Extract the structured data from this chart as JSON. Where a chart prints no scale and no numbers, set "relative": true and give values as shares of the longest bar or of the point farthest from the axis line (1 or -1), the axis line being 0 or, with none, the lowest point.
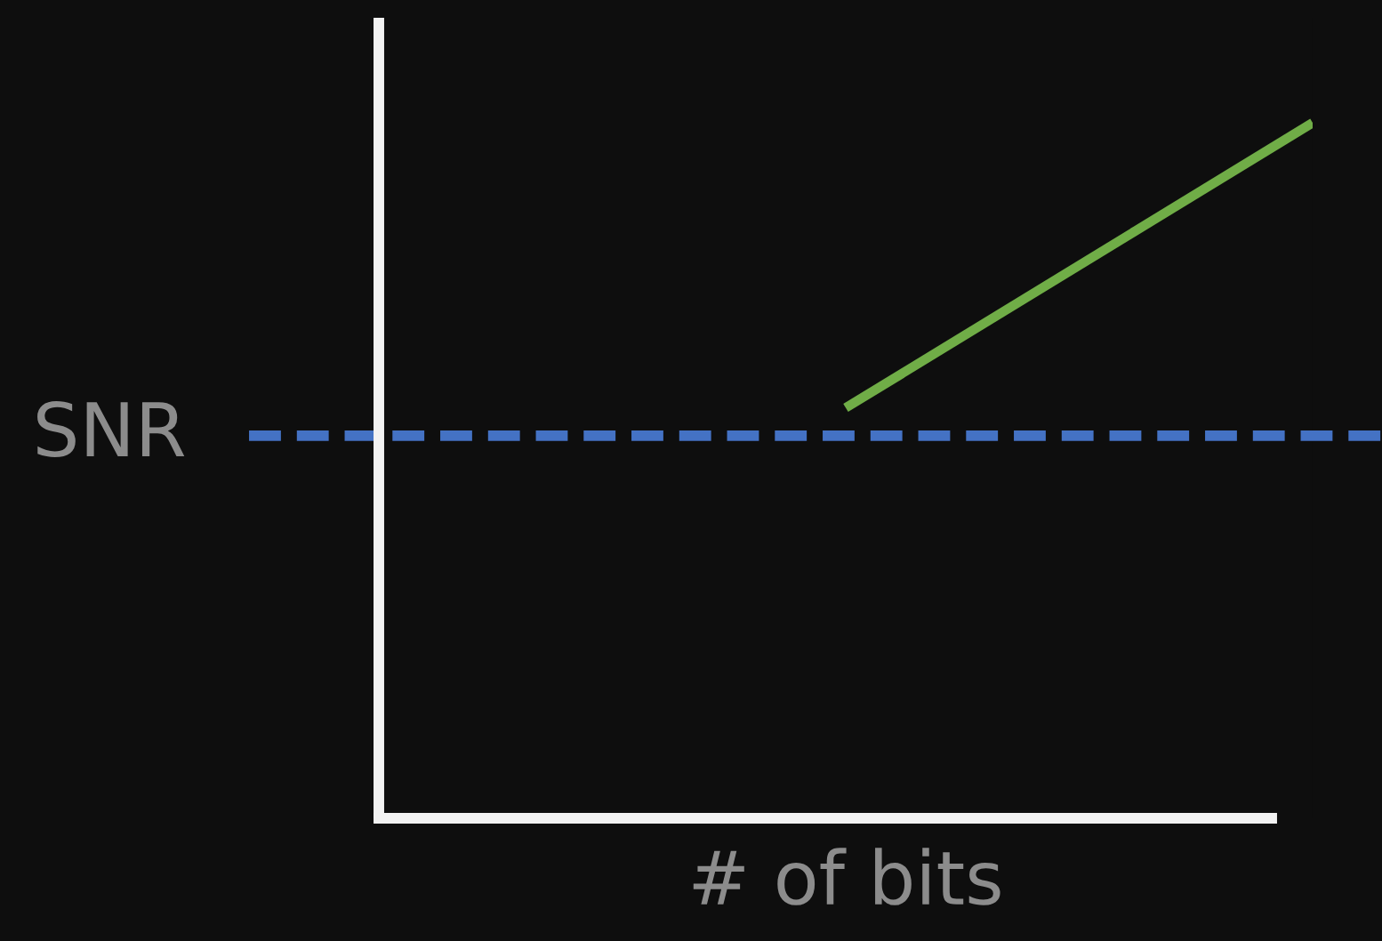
{
  "chart_data": {
    "type": "line",
    "relative": true,
    "xlabel": "# of bits",
    "categories": [
      null,
      null,
      null
    ],
    "series": [
      {
        "color": "#70ad47",
        "values": [
          null,
          0.59,
          1
        ]
      }
    ],
    "ref_lines": [
      {
        "axis": "y",
        "value": 0.55,
        "label": "SNR",
        "color": "#4472c4",
        "line_style": "dashed"
      }
    ],
    "grid": false,
    "legend": false,
    "tick_labels": false
  }
}
